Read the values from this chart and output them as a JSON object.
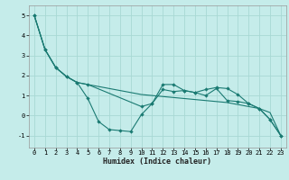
{
  "title": "",
  "xlabel": "Humidex (Indice chaleur)",
  "xlim": [
    -0.5,
    23.5
  ],
  "ylim": [
    -1.6,
    5.5
  ],
  "yticks": [
    -1,
    0,
    1,
    2,
    3,
    4,
    5
  ],
  "xticks": [
    0,
    1,
    2,
    3,
    4,
    5,
    6,
    7,
    8,
    9,
    10,
    11,
    12,
    13,
    14,
    15,
    16,
    17,
    18,
    19,
    20,
    21,
    22,
    23
  ],
  "bg_color": "#c5ecea",
  "grid_color": "#a8d8d4",
  "line_color": "#1a7a72",
  "line1_x": [
    0,
    1,
    2,
    3,
    4,
    5,
    6,
    7,
    8,
    9,
    10,
    11,
    12,
    13,
    14,
    15,
    16,
    17,
    18,
    19,
    20,
    21,
    22,
    23
  ],
  "line1_y": [
    5.0,
    3.3,
    2.4,
    1.95,
    1.65,
    0.85,
    -0.3,
    -0.7,
    -0.75,
    -0.8,
    0.05,
    0.6,
    1.3,
    1.2,
    1.25,
    1.15,
    1.3,
    1.4,
    1.35,
    1.05,
    0.6,
    0.35,
    -0.2,
    -1.0
  ],
  "line2_x": [
    0,
    1,
    2,
    3,
    4,
    5,
    6,
    7,
    8,
    9,
    10,
    11,
    12,
    13,
    14,
    15,
    16,
    17,
    18,
    19,
    20,
    21,
    22,
    23
  ],
  "line2_y": [
    5.0,
    3.3,
    2.4,
    1.95,
    1.65,
    1.55,
    1.45,
    1.35,
    1.25,
    1.15,
    1.05,
    1.0,
    0.95,
    0.9,
    0.85,
    0.8,
    0.75,
    0.7,
    0.65,
    0.55,
    0.45,
    0.35,
    0.15,
    -1.0
  ],
  "line3_x": [
    0,
    1,
    2,
    3,
    4,
    5,
    10,
    11,
    12,
    13,
    14,
    15,
    16,
    17,
    18,
    19,
    20,
    21,
    22,
    23
  ],
  "line3_y": [
    5.0,
    3.3,
    2.4,
    1.95,
    1.65,
    1.55,
    0.45,
    0.6,
    1.55,
    1.55,
    1.25,
    1.15,
    1.0,
    1.35,
    0.75,
    0.7,
    0.6,
    0.35,
    -0.2,
    -1.0
  ]
}
